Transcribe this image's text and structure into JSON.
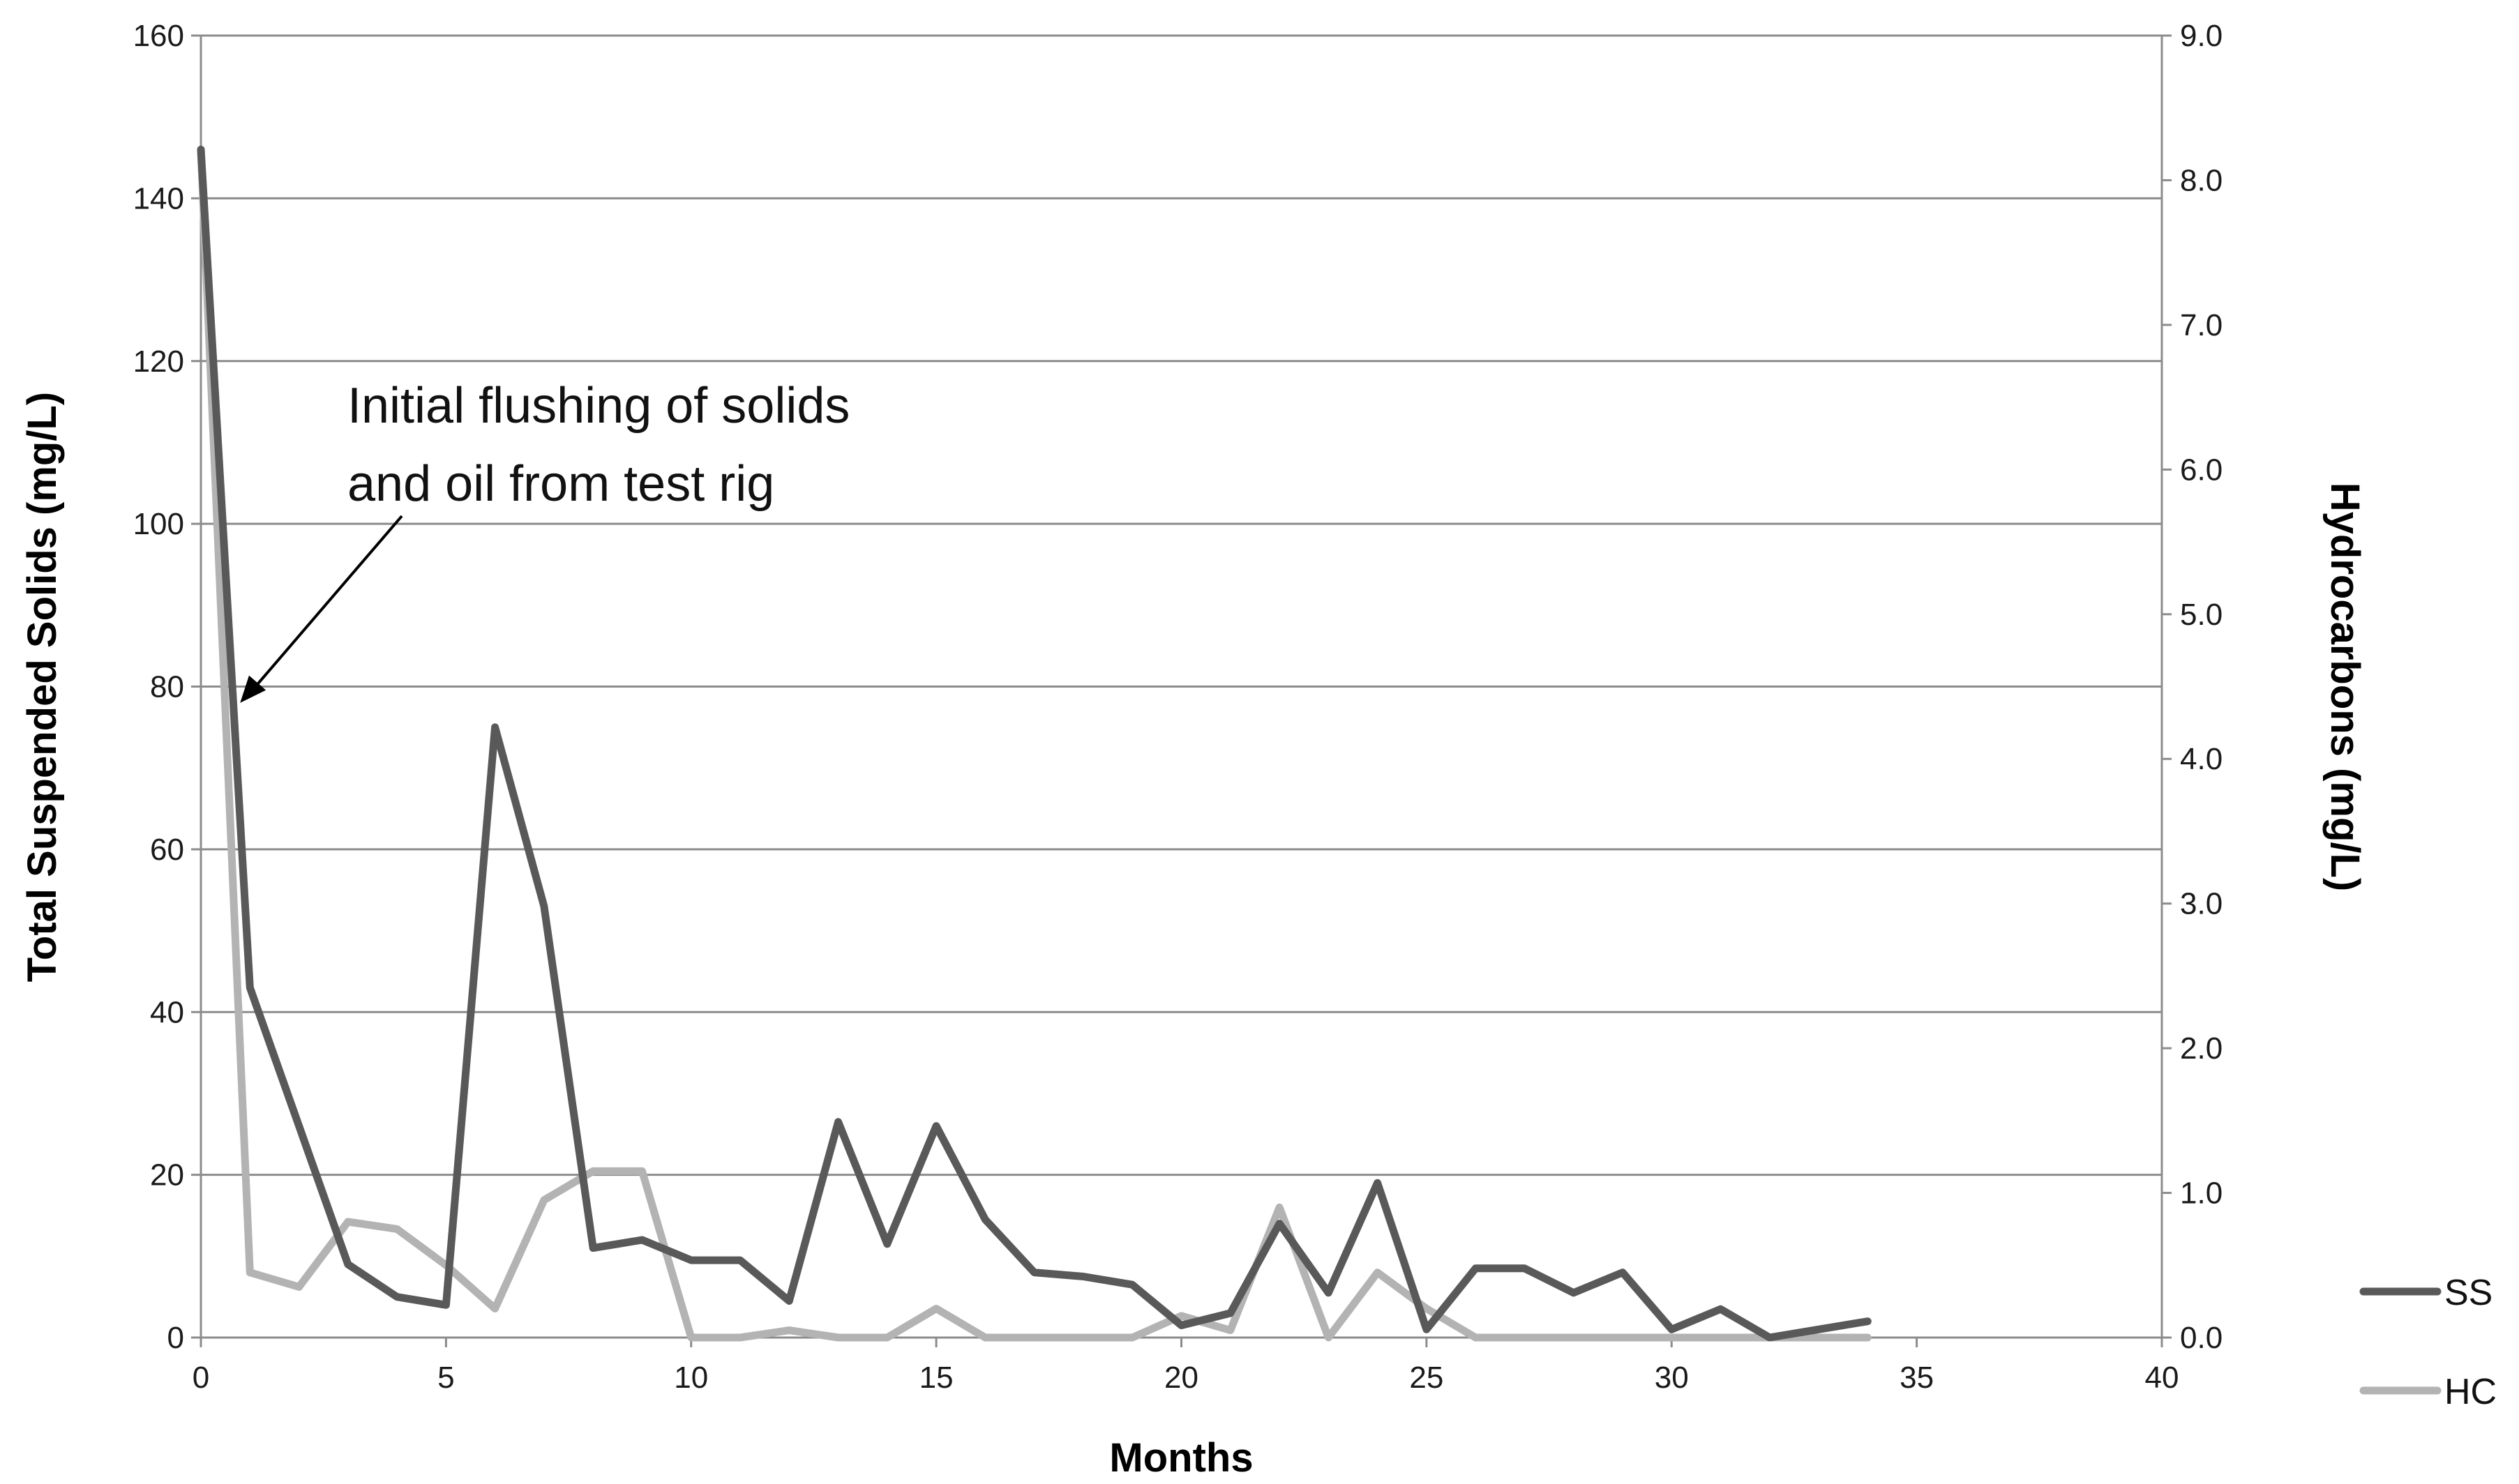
{
  "chart_data": {
    "type": "line",
    "xlabel": "Months",
    "ylabel_left": "Total Suspended Solids (mg/L)",
    "ylabel_right": "Hydrocarbons (mg/L)",
    "xlim": [
      0,
      40
    ],
    "ylim_left": [
      0,
      160
    ],
    "ylim_right": [
      0,
      9
    ],
    "x_ticks": [
      "0",
      "5",
      "10",
      "15",
      "20",
      "25",
      "30",
      "35",
      "40"
    ],
    "y_left_ticks": [
      "0",
      "20",
      "40",
      "60",
      "80",
      "100",
      "120",
      "140",
      "160"
    ],
    "y_right_ticks": [
      "0.0",
      "1.0",
      "2.0",
      "3.0",
      "4.0",
      "5.0",
      "6.0",
      "7.0",
      "8.0",
      "9.0"
    ],
    "grid": true,
    "legend_position": "bottom-right",
    "annotation": {
      "lines": [
        "Initial flushing of solids",
        "and oil from test rig"
      ],
      "points_to": {
        "x": 0.8,
        "y": 78,
        "axis": "left"
      }
    },
    "series": [
      {
        "name": "SS",
        "axis": "left",
        "color": "#595959",
        "x": [
          0,
          1,
          2,
          3,
          4,
          5,
          6,
          7,
          8,
          9,
          10,
          11,
          12,
          13,
          14,
          15,
          16,
          17,
          18,
          19,
          20,
          21,
          22,
          23,
          24,
          25,
          26,
          27,
          28,
          29,
          30,
          31,
          32,
          33,
          34
        ],
        "values": [
          146,
          43,
          26,
          9,
          5,
          4,
          75,
          53,
          11,
          12,
          9.5,
          9.5,
          4.5,
          26.5,
          11.5,
          26,
          14.5,
          8,
          7.5,
          6.5,
          1.5,
          3,
          14,
          5.5,
          19,
          1,
          8.5,
          8.5,
          5.5,
          8,
          1,
          3.5,
          0,
          1,
          2
        ]
      },
      {
        "name": "HC",
        "axis": "right",
        "color": "#b3b3b3",
        "x": [
          0,
          1,
          2,
          3,
          4,
          5,
          6,
          7,
          8,
          9,
          10,
          11,
          12,
          13,
          14,
          15,
          16,
          17,
          18,
          19,
          20,
          21,
          22,
          23,
          24,
          25,
          26,
          27,
          28,
          29,
          30,
          31,
          32,
          33,
          34
        ],
        "values": [
          8.2,
          0.45,
          0.35,
          0.8,
          0.75,
          0.5,
          0.2,
          0.95,
          1.15,
          1.15,
          0,
          0,
          0.05,
          0,
          0,
          0.2,
          0,
          0,
          0,
          0,
          0.15,
          0.05,
          0.9,
          0,
          0.45,
          0.2,
          0,
          0,
          0,
          0,
          0,
          0,
          0,
          0,
          0
        ]
      }
    ]
  }
}
